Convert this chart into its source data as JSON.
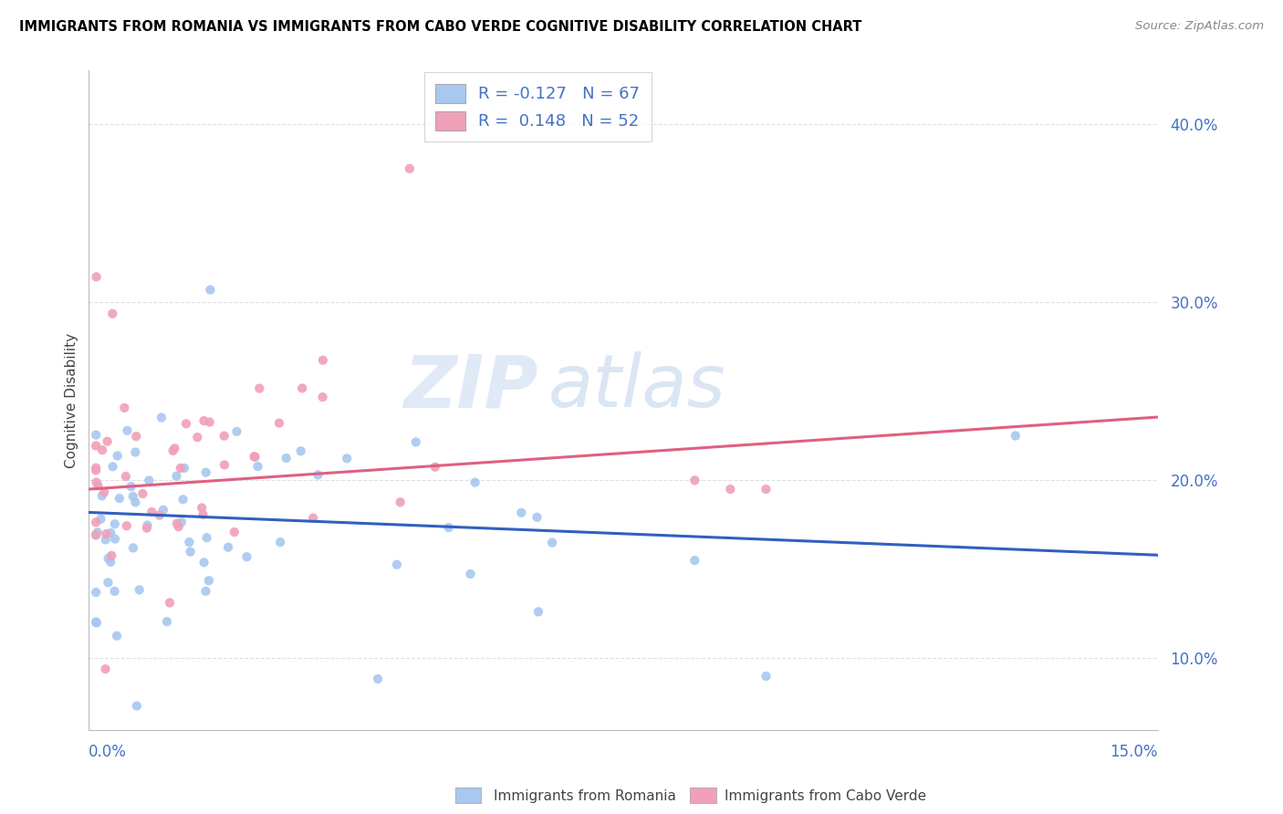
{
  "title": "IMMIGRANTS FROM ROMANIA VS IMMIGRANTS FROM CABO VERDE COGNITIVE DISABILITY CORRELATION CHART",
  "source": "Source: ZipAtlas.com",
  "ylabel": "Cognitive Disability",
  "xlim": [
    0.0,
    0.15
  ],
  "ylim": [
    0.06,
    0.43
  ],
  "y_ticks": [
    0.1,
    0.2,
    0.3,
    0.4
  ],
  "y_tick_labels": [
    "10.0%",
    "20.0%",
    "30.0%",
    "40.0%"
  ],
  "romania_color": "#a8c8f0",
  "cabo_verde_color": "#f0a0b8",
  "romania_line_color": "#3060c0",
  "cabo_verde_line_color": "#e06080",
  "romania_R": -0.127,
  "romania_N": 67,
  "cabo_verde_R": 0.148,
  "cabo_verde_N": 52,
  "legend_text_1": "R = -0.127   N = 67",
  "legend_text_2": "R =  0.148   N = 52",
  "watermark_zip": "ZIP",
  "watermark_atlas": "atlas",
  "bottom_label_1": "Immigrants from Romania",
  "bottom_label_2": "Immigrants from Cabo Verde"
}
